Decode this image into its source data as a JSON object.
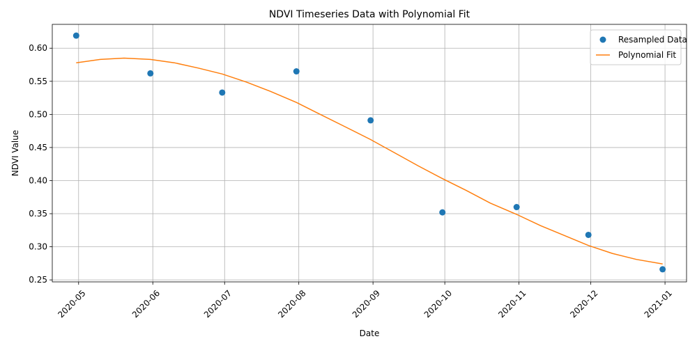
{
  "chart_data": {
    "type": "line",
    "title": "NDVI Timeseries Data with Polynomial Fit",
    "xlabel": "Date",
    "ylabel": "NDVI Value",
    "x_ticks": [
      "2020-05",
      "2020-06",
      "2020-07",
      "2020-08",
      "2020-09",
      "2020-10",
      "2020-11",
      "2020-12",
      "2021-01"
    ],
    "y_ticks": [
      "0.25",
      "0.30",
      "0.35",
      "0.40",
      "0.45",
      "0.50",
      "0.55",
      "0.60"
    ],
    "xlim": [
      "2020-04-20",
      "2021-01-10"
    ],
    "ylim": [
      0.247,
      0.636
    ],
    "grid": true,
    "legend_position": "top-right",
    "colors": {
      "scatter": "#1f77b4",
      "fit": "#ff7f0e",
      "grid": "#b0b0b0"
    },
    "series": [
      {
        "name": "Resampled Data",
        "kind": "scatter",
        "x": [
          "2020-04-30",
          "2020-05-31",
          "2020-06-30",
          "2020-07-31",
          "2020-08-31",
          "2020-09-30",
          "2020-10-31",
          "2020-11-30",
          "2020-12-31"
        ],
        "y": [
          0.619,
          0.562,
          0.533,
          0.565,
          0.491,
          0.352,
          0.36,
          0.318,
          0.266
        ]
      },
      {
        "name": "Polynomial Fit",
        "kind": "line",
        "x": [
          "2020-04-30",
          "2020-05-10",
          "2020-05-20",
          "2020-05-31",
          "2020-06-10",
          "2020-06-20",
          "2020-06-30",
          "2020-07-10",
          "2020-07-20",
          "2020-07-31",
          "2020-08-10",
          "2020-08-20",
          "2020-08-31",
          "2020-09-10",
          "2020-09-20",
          "2020-09-30",
          "2020-10-10",
          "2020-10-20",
          "2020-10-31",
          "2020-11-10",
          "2020-11-20",
          "2020-11-30",
          "2020-12-10",
          "2020-12-20",
          "2020-12-31"
        ],
        "y": [
          0.578,
          0.583,
          0.585,
          0.583,
          0.578,
          0.57,
          0.561,
          0.549,
          0.535,
          0.518,
          0.5,
          0.482,
          0.462,
          0.442,
          0.422,
          0.403,
          0.385,
          0.366,
          0.349,
          0.332,
          0.317,
          0.302,
          0.29,
          0.281,
          0.274
        ]
      }
    ]
  }
}
